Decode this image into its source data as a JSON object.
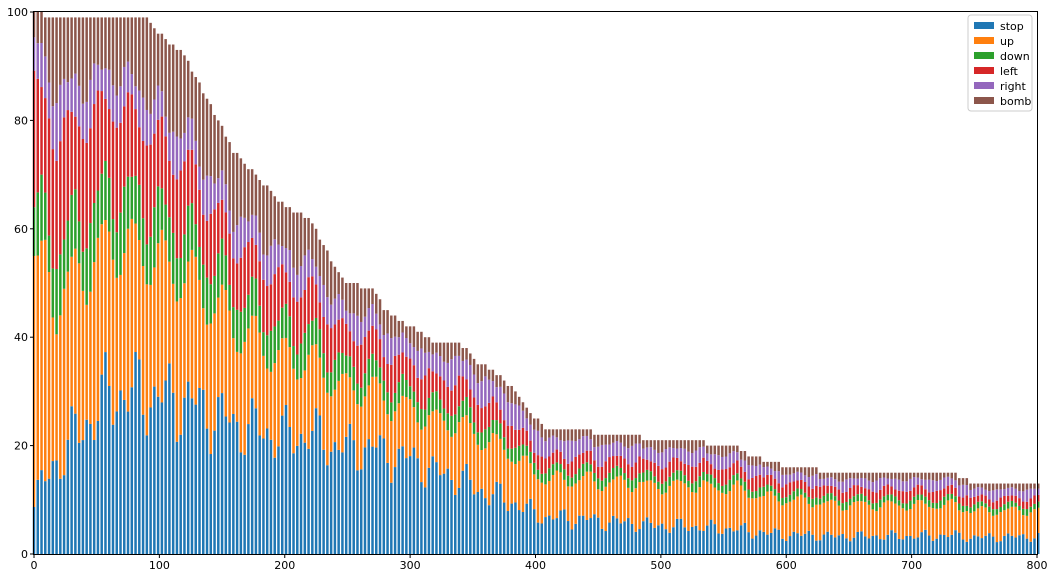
{
  "chart_data": {
    "type": "bar",
    "stacked": true,
    "xlim": [
      0,
      800
    ],
    "ylim": [
      0,
      100
    ],
    "x_ticks": [
      0,
      100,
      200,
      300,
      400,
      500,
      600,
      700,
      800
    ],
    "y_ticks": [
      0,
      20,
      40,
      60,
      80,
      100
    ],
    "grid": false,
    "legend_position": "top-right",
    "series": [
      {
        "name": "stop",
        "color": "#1f77b4"
      },
      {
        "name": "up",
        "color": "#ff7f0e"
      },
      {
        "name": "down",
        "color": "#2ca02c"
      },
      {
        "name": "left",
        "color": "#d62728"
      },
      {
        "name": "right",
        "color": "#9467bd"
      },
      {
        "name": "bomb",
        "color": "#8c564b"
      }
    ],
    "total_profile": [
      [
        0,
        100
      ],
      [
        15,
        99
      ],
      [
        90,
        99
      ],
      [
        100,
        96
      ],
      [
        120,
        92
      ],
      [
        140,
        83
      ],
      [
        160,
        74
      ],
      [
        180,
        69
      ],
      [
        200,
        64
      ],
      [
        220,
        62
      ],
      [
        240,
        53
      ],
      [
        250,
        50
      ],
      [
        270,
        49
      ],
      [
        280,
        45
      ],
      [
        300,
        42
      ],
      [
        320,
        39
      ],
      [
        340,
        39
      ],
      [
        350,
        36
      ],
      [
        370,
        33
      ],
      [
        380,
        31
      ],
      [
        400,
        25
      ],
      [
        410,
        23
      ],
      [
        440,
        23
      ],
      [
        450,
        22
      ],
      [
        480,
        22
      ],
      [
        490,
        21
      ],
      [
        530,
        21
      ],
      [
        540,
        20
      ],
      [
        560,
        20
      ],
      [
        570,
        18
      ],
      [
        590,
        17
      ],
      [
        600,
        16
      ],
      [
        650,
        15
      ],
      [
        690,
        15
      ],
      [
        730,
        15
      ],
      [
        750,
        13
      ],
      [
        800,
        13
      ]
    ],
    "share_profile": [
      [
        0,
        [
          0.1,
          0.45,
          0.1,
          0.22,
          0.08,
          0.05
        ]
      ],
      [
        20,
        [
          0.18,
          0.3,
          0.1,
          0.2,
          0.08,
          0.14
        ]
      ],
      [
        60,
        [
          0.3,
          0.28,
          0.1,
          0.16,
          0.06,
          0.1
        ]
      ],
      [
        100,
        [
          0.3,
          0.26,
          0.09,
          0.14,
          0.06,
          0.15
        ]
      ],
      [
        150,
        [
          0.32,
          0.25,
          0.09,
          0.12,
          0.07,
          0.15
        ]
      ],
      [
        200,
        [
          0.34,
          0.22,
          0.09,
          0.13,
          0.08,
          0.14
        ]
      ],
      [
        260,
        [
          0.4,
          0.22,
          0.08,
          0.12,
          0.08,
          0.1
        ]
      ],
      [
        300,
        [
          0.42,
          0.22,
          0.08,
          0.12,
          0.09,
          0.07
        ]
      ],
      [
        360,
        [
          0.33,
          0.28,
          0.08,
          0.12,
          0.12,
          0.07
        ]
      ],
      [
        400,
        [
          0.3,
          0.3,
          0.08,
          0.1,
          0.14,
          0.08
        ]
      ],
      [
        500,
        [
          0.25,
          0.35,
          0.08,
          0.12,
          0.12,
          0.08
        ]
      ],
      [
        600,
        [
          0.22,
          0.4,
          0.08,
          0.12,
          0.1,
          0.08
        ]
      ],
      [
        700,
        [
          0.22,
          0.38,
          0.08,
          0.12,
          0.12,
          0.08
        ]
      ],
      [
        800,
        [
          0.25,
          0.37,
          0.08,
          0.1,
          0.12,
          0.08
        ]
      ]
    ]
  }
}
